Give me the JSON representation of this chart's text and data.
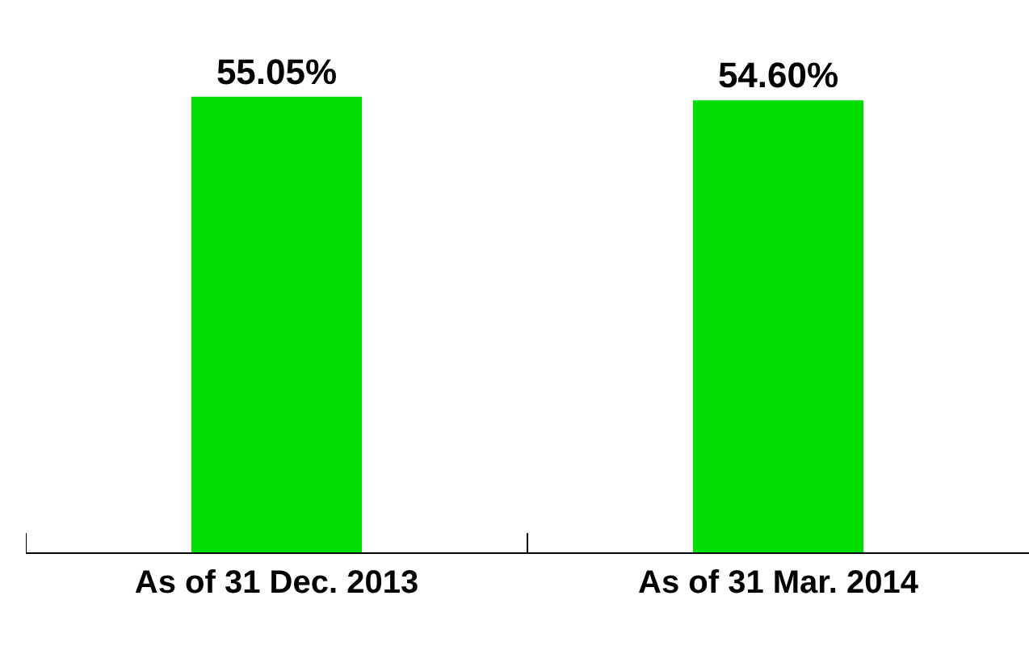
{
  "chart_data": {
    "type": "bar",
    "categories": [
      "As of 31 Dec. 2013",
      "As of 31 Mar. 2014"
    ],
    "values": [
      55.05,
      54.6
    ],
    "value_labels": [
      "55.05%",
      "54.60%"
    ],
    "color": "#00dd00",
    "tick_labels": "x"
  }
}
